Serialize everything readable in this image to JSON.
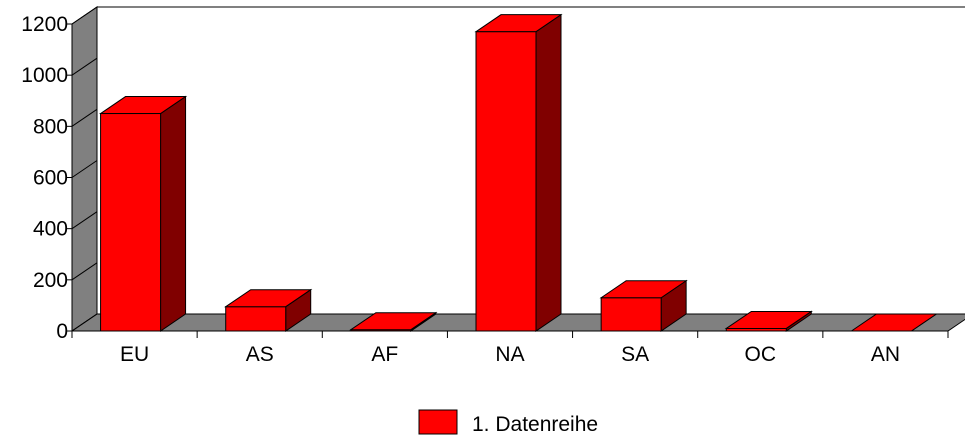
{
  "chart_data": {
    "type": "bar",
    "categories": [
      "EU",
      "AS",
      "AF",
      "NA",
      "SA",
      "OC",
      "AN"
    ],
    "series": [
      {
        "name": "1. Datenreihe",
        "values": [
          850,
          95,
          5,
          1170,
          130,
          10,
          0
        ],
        "color": "#ff0000"
      }
    ],
    "ylim": [
      0,
      1200
    ],
    "yticks": [
      "0",
      "200",
      "400",
      "600",
      "800",
      "1000",
      "1200"
    ],
    "grid": false,
    "legend_position": "bottom",
    "style": "3d",
    "wall_color": "#808080",
    "side_color": "#800000"
  }
}
